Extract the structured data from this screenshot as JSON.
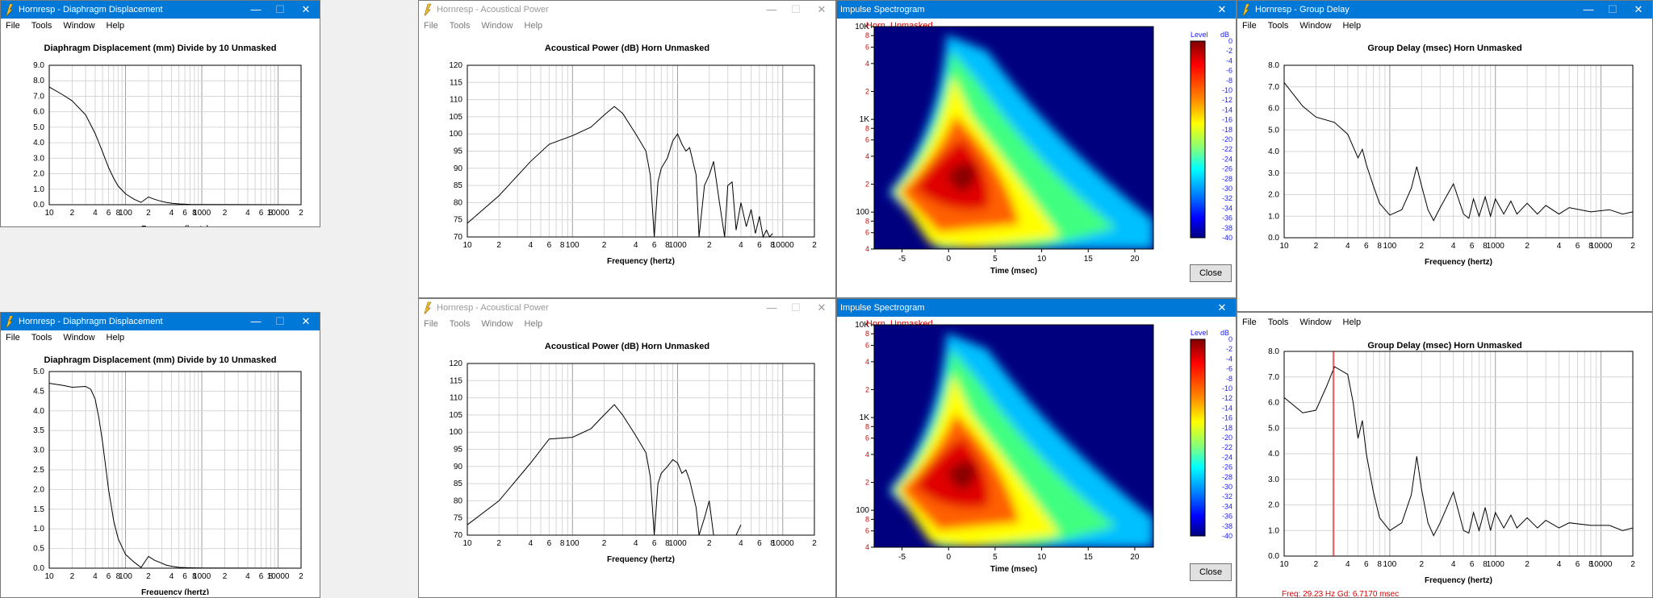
{
  "menu": [
    "File",
    "Tools",
    "Window",
    "Help"
  ],
  "win_controls": {
    "min": "—",
    "max": "☐",
    "close": "✕"
  },
  "windows": {
    "disp_top": {
      "title": "Hornresp - Diaphragm Displacement",
      "plot_title": "Diaphragm Displacement (mm)   Divide by 10   Unmasked",
      "xlabel": "Frequency (hertz)",
      "yticks": [
        "9.0",
        "8.0",
        "7.0",
        "6.0",
        "5.0",
        "4.0",
        "3.0",
        "2.0",
        "1.0",
        "0.0"
      ]
    },
    "disp_bot": {
      "title": "Hornresp - Diaphragm Displacement",
      "plot_title": "Diaphragm Displacement (mm)   Divide by 10   Unmasked",
      "xlabel": "Frequency (hertz)",
      "yticks": [
        "5.0",
        "4.5",
        "4.0",
        "3.5",
        "3.0",
        "2.5",
        "2.0",
        "1.5",
        "1.0",
        "0.5",
        "0.0"
      ]
    },
    "power_top": {
      "title": "Hornresp - Acoustical Power",
      "plot_title": "Acoustical Power (dB)   Horn   Unmasked",
      "xlabel": "Frequency (hertz)",
      "yticks": [
        "120",
        "115",
        "110",
        "105",
        "100",
        "95",
        "90",
        "85",
        "80",
        "75",
        "70"
      ]
    },
    "power_bot": {
      "title": "Hornresp - Acoustical Power",
      "plot_title": "Acoustical Power (dB)   Horn   Unmasked",
      "xlabel": "Frequency (hertz)",
      "yticks": [
        "120",
        "115",
        "110",
        "105",
        "100",
        "95",
        "90",
        "85",
        "80",
        "75",
        "70"
      ]
    },
    "spec_top": {
      "title": "Impulse Spectrogram",
      "horn": "Horn",
      "unmasked": "Unmasked",
      "xlabel": "Time (msec)",
      "level": "Level",
      "db": "dB",
      "close": "Close"
    },
    "spec_bot": {
      "title": "Impulse Spectrogram",
      "horn": "Horn",
      "unmasked": "Unmasked",
      "xlabel": "Time (msec)",
      "level": "Level",
      "db": "dB",
      "close": "Close"
    },
    "gd_top": {
      "title": "Hornresp - Group Delay",
      "plot_title": "Group Delay (msec)   Horn   Unmasked",
      "xlabel": "Frequency (hertz)",
      "yticks": [
        "8.0",
        "7.0",
        "6.0",
        "5.0",
        "4.0",
        "3.0",
        "2.0",
        "1.0",
        "0.0"
      ]
    },
    "gd_bot": {
      "plot_title": "Group Delay (msec)   Horn   Unmasked",
      "xlabel": "Frequency (hertz)",
      "yticks": [
        "8.0",
        "7.0",
        "6.0",
        "5.0",
        "4.0",
        "3.0",
        "2.0",
        "1.0",
        "0.0"
      ],
      "readout": "Freq: 29.23 Hz    Gd: 6.7170 msec"
    }
  },
  "freq_ticks": [
    "10",
    "2",
    "4",
    "6",
    "8",
    "100",
    "2",
    "4",
    "6",
    "8",
    "1000",
    "2",
    "4",
    "6",
    "8",
    "10000",
    "2"
  ],
  "spec_yticks": [
    "10K",
    "8",
    "6",
    "4",
    "2",
    "1K",
    "8",
    "6",
    "4",
    "2",
    "100",
    "8",
    "6",
    "4"
  ],
  "spec_xticks": [
    "-5",
    "0",
    "5",
    "10",
    "15",
    "20"
  ],
  "level_ticks": [
    "0",
    "-2",
    "-4",
    "-6",
    "-8",
    "-10",
    "-12",
    "-14",
    "-16",
    "-18",
    "-20",
    "-22",
    "-24",
    "-26",
    "-28",
    "-30",
    "-32",
    "-34",
    "-36",
    "-38",
    "-40"
  ],
  "colors": {
    "accent": "#0078d7",
    "grid": "#c8c8c8",
    "spec_bg": "#00007f",
    "cursor": "#ff0000"
  },
  "chart_data": [
    {
      "type": "line",
      "title": "Diaphragm Displacement (mm)   Divide by 10   Unmasked",
      "xlabel": "Frequency (hertz)",
      "xscale": "log",
      "xlim": [
        10,
        20000
      ],
      "ylim": [
        0,
        9
      ],
      "x": [
        10,
        15,
        20,
        30,
        40,
        50,
        60,
        70,
        80,
        100,
        130,
        160,
        200,
        240,
        280,
        340,
        400,
        500,
        700,
        1000,
        20000
      ],
      "y": [
        7.6,
        7.1,
        6.7,
        5.8,
        4.6,
        3.4,
        2.4,
        1.7,
        1.2,
        0.7,
        0.35,
        0.15,
        0.5,
        0.35,
        0.25,
        0.15,
        0.1,
        0.05,
        0.02,
        0.01,
        0
      ]
    },
    {
      "type": "line",
      "title": "Diaphragm Displacement (mm)   Divide by 10   Unmasked",
      "xlabel": "Frequency (hertz)",
      "xscale": "log",
      "xlim": [
        10,
        20000
      ],
      "ylim": [
        0,
        5
      ],
      "x": [
        10,
        15,
        20,
        30,
        35,
        40,
        45,
        50,
        60,
        70,
        80,
        100,
        130,
        160,
        200,
        240,
        280,
        340,
        400,
        500,
        700,
        1000,
        20000
      ],
      "y": [
        4.7,
        4.65,
        4.6,
        4.62,
        4.55,
        4.3,
        3.8,
        3.2,
        2.0,
        1.2,
        0.75,
        0.35,
        0.15,
        0.02,
        0.3,
        0.2,
        0.15,
        0.08,
        0.05,
        0.02,
        0.01,
        0.005,
        0
      ]
    },
    {
      "type": "line",
      "title": "Acoustical Power (dB)   Horn   Unmasked",
      "xlabel": "Frequency (hertz)",
      "xscale": "log",
      "xlim": [
        10,
        20000
      ],
      "ylim": [
        70,
        120
      ],
      "x": [
        10,
        20,
        40,
        60,
        100,
        150,
        200,
        250,
        300,
        400,
        500,
        550,
        600,
        650,
        700,
        800,
        900,
        1000,
        1100,
        1200,
        1300,
        1500,
        1600,
        1800,
        2000,
        2200,
        2500,
        2800,
        3000,
        3300,
        3600,
        4000,
        4500,
        5000,
        5500,
        6000,
        6500,
        7000,
        7500,
        8000
      ],
      "y": [
        74,
        82,
        92,
        97,
        99.5,
        102,
        105.5,
        108,
        106,
        100,
        95,
        88,
        70,
        86,
        90,
        93,
        98,
        100,
        97,
        95,
        96,
        88,
        70,
        85,
        88,
        92,
        80,
        70,
        85,
        86,
        72,
        80,
        73,
        78,
        71,
        76,
        70,
        72,
        70,
        71
      ]
    },
    {
      "type": "line",
      "title": "Acoustical Power (dB)   Horn   Unmasked",
      "xlabel": "Frequency (hertz)",
      "xscale": "log",
      "xlim": [
        10,
        20000
      ],
      "ylim": [
        70,
        120
      ],
      "x": [
        10,
        20,
        40,
        60,
        100,
        150,
        200,
        250,
        300,
        400,
        500,
        550,
        600,
        650,
        700,
        800,
        900,
        1000,
        1100,
        1200,
        1300,
        1500,
        1600,
        1800,
        2000,
        2200,
        2500,
        2800,
        3000,
        3300,
        3600,
        4000
      ],
      "y": [
        73,
        80,
        91,
        98,
        98.5,
        101,
        105,
        108,
        105,
        99,
        94,
        87,
        70,
        85,
        88,
        90,
        92,
        91,
        88,
        89,
        86,
        78,
        70,
        75,
        80,
        70,
        70,
        70,
        70,
        70,
        70,
        73
      ]
    },
    {
      "type": "line",
      "title": "Group Delay (msec)   Horn   Unmasked",
      "xlabel": "Frequency (hertz)",
      "xscale": "log",
      "xlim": [
        10,
        20000
      ],
      "ylim": [
        0,
        8
      ],
      "x": [
        10,
        15,
        20,
        30,
        40,
        50,
        55,
        60,
        70,
        80,
        100,
        130,
        160,
        180,
        200,
        230,
        260,
        300,
        400,
        500,
        560,
        620,
        700,
        800,
        900,
        1000,
        1200,
        1400,
        1600,
        2000,
        2500,
        3000,
        4000,
        5000,
        8000,
        12000,
        16000,
        20000
      ],
      "y": [
        7.2,
        6.1,
        5.6,
        5.35,
        4.8,
        3.7,
        4.1,
        3.4,
        2.4,
        1.6,
        1.05,
        1.3,
        2.3,
        3.3,
        2.4,
        1.3,
        0.8,
        1.4,
        2.5,
        1.1,
        0.9,
        1.8,
        1.0,
        1.9,
        1.0,
        1.8,
        1.1,
        1.7,
        1.1,
        1.6,
        1.1,
        1.5,
        1.1,
        1.4,
        1.2,
        1.3,
        1.1,
        1.2
      ]
    },
    {
      "type": "line",
      "title": "Group Delay (msec)   Horn   Unmasked",
      "xlabel": "Frequency (hertz)",
      "xscale": "log",
      "xlim": [
        10,
        20000
      ],
      "ylim": [
        0,
        8
      ],
      "x": [
        10,
        15,
        20,
        25,
        30,
        40,
        45,
        50,
        55,
        60,
        70,
        80,
        100,
        130,
        160,
        180,
        200,
        230,
        260,
        300,
        400,
        500,
        560,
        620,
        700,
        800,
        900,
        1000,
        1200,
        1400,
        1600,
        2000,
        2500,
        3000,
        4000,
        5000,
        8000,
        12000,
        16000,
        20000
      ],
      "y": [
        6.2,
        5.6,
        5.7,
        6.6,
        7.4,
        7.1,
        6.0,
        4.6,
        5.3,
        4.0,
        2.5,
        1.5,
        1.0,
        1.3,
        2.4,
        3.9,
        2.6,
        1.3,
        0.8,
        1.3,
        2.5,
        1.0,
        0.9,
        1.7,
        1.0,
        1.9,
        1.0,
        1.7,
        1.1,
        1.6,
        1.1,
        1.5,
        1.1,
        1.4,
        1.1,
        1.3,
        1.2,
        1.2,
        1.0,
        1.1
      ]
    }
  ]
}
